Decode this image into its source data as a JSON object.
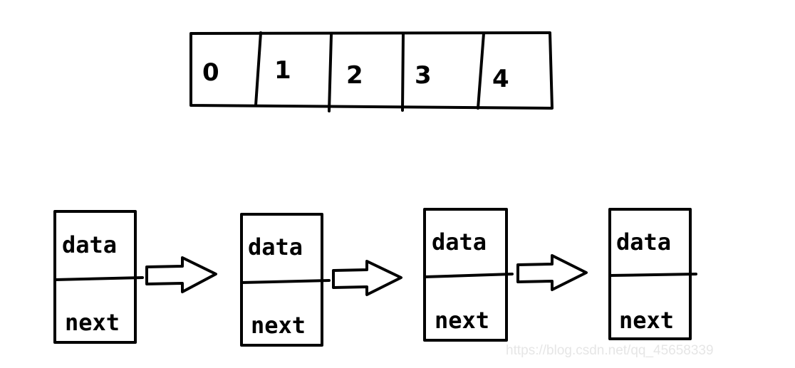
{
  "array": {
    "cells": [
      "0",
      "1",
      "2",
      "3",
      "4"
    ]
  },
  "linked_list": {
    "nodes": [
      {
        "data_label": "data",
        "next_label": "next"
      },
      {
        "data_label": "data",
        "next_label": "next"
      },
      {
        "data_label": "data",
        "next_label": "next"
      },
      {
        "data_label": "data",
        "next_label": "next"
      }
    ]
  },
  "watermark": "https://blog.csdn.net/qq_45658339"
}
